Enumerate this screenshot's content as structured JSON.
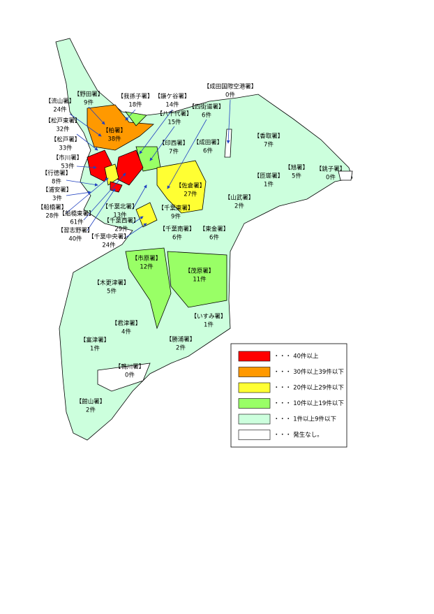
{
  "stations": [
    {
      "name": "【流山署】",
      "count": "24件",
      "color": "#ffff33"
    },
    {
      "name": "【野田署】",
      "count": "9件",
      "color": "#ccffdd"
    },
    {
      "name": "【我孫子署】",
      "count": "18件",
      "color": "#99ff66"
    },
    {
      "name": "【鎌ケ谷署】",
      "count": "14件",
      "color": "#99ff66"
    },
    {
      "name": "【成田国際空港署】",
      "count": "0件",
      "color": "#ffffff"
    },
    {
      "name": "【八千代署】",
      "count": "15件",
      "color": "#99ff66"
    },
    {
      "name": "【四街道署】",
      "count": "6件",
      "color": "#ccffdd"
    },
    {
      "name": "【松戸東署】",
      "count": "32件",
      "color": "#ff9900"
    },
    {
      "name": "【柏署】",
      "count": "38件",
      "color": "#ff9900"
    },
    {
      "name": "【成田署】",
      "count": "6件",
      "color": "#ccffdd"
    },
    {
      "name": "【香取署】",
      "count": "7件",
      "color": "#ccffdd"
    },
    {
      "name": "【松戸署】",
      "count": "33件",
      "color": "#ff9900"
    },
    {
      "name": "【印西署】",
      "count": "7件",
      "color": "#ccffdd"
    },
    {
      "name": "【市川署】",
      "count": "53件",
      "color": "#ff0000"
    },
    {
      "name": "【旭署】",
      "count": "5件",
      "color": "#ccffdd"
    },
    {
      "name": "【銚子署】",
      "count": "0件",
      "color": "#ffffff"
    },
    {
      "name": "【行徳署】",
      "count": "8件",
      "color": "#ccffdd"
    },
    {
      "name": "【匝瑳署】",
      "count": "1件",
      "color": "#ccffdd"
    },
    {
      "name": "【佐倉署】",
      "count": "27件",
      "color": "#ffff33"
    },
    {
      "name": "【浦安署】",
      "count": "3件",
      "color": "#ccffdd"
    },
    {
      "name": "【山武署】",
      "count": "2件",
      "color": "#ccffdd"
    },
    {
      "name": "【船橋署】",
      "count": "28件",
      "color": "#ffff33"
    },
    {
      "name": "【千葉北署】",
      "count": "13件",
      "color": "#99ff66"
    },
    {
      "name": "【千葉東署】",
      "count": "9件",
      "color": "#ccffdd"
    },
    {
      "name": "【船橋東署】",
      "count": "61件",
      "color": "#ff0000"
    },
    {
      "name": "【千葉西署】",
      "count": "29件",
      "color": "#ffff33"
    },
    {
      "name": "【千葉南署】",
      "count": "6件",
      "color": "#ccffdd"
    },
    {
      "name": "【東金署】",
      "count": "6件",
      "color": "#ccffdd"
    },
    {
      "name": "【習志野署】",
      "count": "40件",
      "color": "#ff0000"
    },
    {
      "name": "【千葉中央署】",
      "count": "24件",
      "color": "#ffff33"
    },
    {
      "name": "【市原署】",
      "count": "12件",
      "color": "#99ff66"
    },
    {
      "name": "【茂原署】",
      "count": "11件",
      "color": "#99ff66"
    },
    {
      "name": "【木更津署】",
      "count": "5件",
      "color": "#ccffdd"
    },
    {
      "name": "【いすみ署】",
      "count": "1件",
      "color": "#ccffdd"
    },
    {
      "name": "【君津署】",
      "count": "4件",
      "color": "#ccffdd"
    },
    {
      "name": "【勝浦署】",
      "count": "2件",
      "color": "#ccffdd"
    },
    {
      "name": "【富津署】",
      "count": "1件",
      "color": "#ccffdd"
    },
    {
      "name": "【鴨川署】",
      "count": "0件",
      "color": "#ffffff"
    },
    {
      "name": "【館山署】",
      "count": "2件",
      "color": "#ccffdd"
    }
  ],
  "legend": [
    {
      "color": "#ff0000",
      "label": "・・・ 40件以上"
    },
    {
      "color": "#ff9900",
      "label": "・・・ 30件以上39件以下"
    },
    {
      "color": "#ffff33",
      "label": "・・・ 20件以上29件以下"
    },
    {
      "color": "#99ff66",
      "label": "・・・ 10件以上19件以下"
    },
    {
      "color": "#ccffdd",
      "label": "・・・ 1件以上9件以下"
    },
    {
      "color": "#ffffff",
      "label": "・・・ 発生なし。"
    }
  ]
}
